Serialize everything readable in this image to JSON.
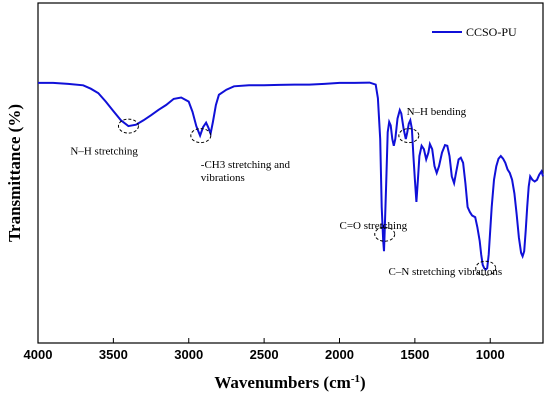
{
  "chart_data": {
    "type": "line",
    "xlabel": "Wavenumbers (cm",
    "xlabel_sup": "-1",
    "xlabel_close": ")",
    "ylabel": "Transmittance (%)",
    "xlim": [
      4000,
      650
    ],
    "x_reversed": true,
    "y_units": "arbitrary (no y tick labels)",
    "ylim": [
      0,
      100
    ],
    "xticks": [
      4000,
      3500,
      3000,
      2500,
      2000,
      1500,
      1000
    ],
    "grid": false,
    "legend_position": "top-right",
    "series": [
      {
        "name": "CCSO-PU",
        "color": "#1010d8",
        "points": [
          [
            4000,
            76.5
          ],
          [
            3900,
            76.5
          ],
          [
            3800,
            76.2
          ],
          [
            3700,
            75.8
          ],
          [
            3650,
            74.8
          ],
          [
            3600,
            73.5
          ],
          [
            3550,
            71
          ],
          [
            3500,
            68.2
          ],
          [
            3450,
            65.5
          ],
          [
            3400,
            63.8
          ],
          [
            3350,
            64.2
          ],
          [
            3300,
            65.5
          ],
          [
            3250,
            67
          ],
          [
            3200,
            68.6
          ],
          [
            3150,
            70
          ],
          [
            3100,
            71.8
          ],
          [
            3050,
            72.2
          ],
          [
            3000,
            71
          ],
          [
            2975,
            68
          ],
          [
            2950,
            63.8
          ],
          [
            2925,
            61
          ],
          [
            2905,
            63.5
          ],
          [
            2885,
            64.8
          ],
          [
            2870,
            63.4
          ],
          [
            2855,
            61.6
          ],
          [
            2840,
            65
          ],
          [
            2820,
            70
          ],
          [
            2800,
            73
          ],
          [
            2750,
            74.5
          ],
          [
            2700,
            75.5
          ],
          [
            2600,
            75.8
          ],
          [
            2500,
            75.8
          ],
          [
            2400,
            75.9
          ],
          [
            2300,
            76
          ],
          [
            2200,
            76
          ],
          [
            2100,
            76.2
          ],
          [
            2000,
            76.5
          ],
          [
            1900,
            76.5
          ],
          [
            1800,
            76.6
          ],
          [
            1760,
            76
          ],
          [
            1745,
            72
          ],
          [
            1730,
            60
          ],
          [
            1720,
            40
          ],
          [
            1710,
            30
          ],
          [
            1705,
            27
          ],
          [
            1700,
            33
          ],
          [
            1690,
            47
          ],
          [
            1680,
            62
          ],
          [
            1670,
            65
          ],
          [
            1660,
            64
          ],
          [
            1650,
            60
          ],
          [
            1640,
            58
          ],
          [
            1630,
            60
          ],
          [
            1615,
            66
          ],
          [
            1600,
            68.5
          ],
          [
            1590,
            67.5
          ],
          [
            1575,
            63
          ],
          [
            1560,
            60
          ],
          [
            1550,
            62
          ],
          [
            1540,
            64.5
          ],
          [
            1530,
            65.5
          ],
          [
            1520,
            63
          ],
          [
            1510,
            55
          ],
          [
            1500,
            48
          ],
          [
            1490,
            41.5
          ],
          [
            1480,
            48
          ],
          [
            1470,
            55
          ],
          [
            1455,
            58
          ],
          [
            1440,
            57
          ],
          [
            1425,
            54
          ],
          [
            1410,
            56
          ],
          [
            1400,
            58.5
          ],
          [
            1385,
            57
          ],
          [
            1370,
            52
          ],
          [
            1355,
            50
          ],
          [
            1340,
            52
          ],
          [
            1320,
            56
          ],
          [
            1300,
            58.2
          ],
          [
            1285,
            58
          ],
          [
            1270,
            55
          ],
          [
            1255,
            49
          ],
          [
            1240,
            47
          ],
          [
            1225,
            50.5
          ],
          [
            1210,
            54
          ],
          [
            1195,
            54.5
          ],
          [
            1180,
            53
          ],
          [
            1165,
            47
          ],
          [
            1150,
            40
          ],
          [
            1135,
            38.5
          ],
          [
            1120,
            37.5
          ],
          [
            1100,
            37
          ],
          [
            1085,
            34
          ],
          [
            1070,
            30
          ],
          [
            1060,
            26
          ],
          [
            1050,
            23
          ],
          [
            1040,
            22
          ],
          [
            1030,
            21.6
          ],
          [
            1020,
            22
          ],
          [
            1010,
            26
          ],
          [
            1000,
            33
          ],
          [
            990,
            40
          ],
          [
            975,
            48
          ],
          [
            960,
            52
          ],
          [
            945,
            54.2
          ],
          [
            930,
            55
          ],
          [
            915,
            54.2
          ],
          [
            900,
            53
          ],
          [
            885,
            51
          ],
          [
            870,
            50
          ],
          [
            855,
            48
          ],
          [
            840,
            44
          ],
          [
            825,
            38
          ],
          [
            810,
            31
          ],
          [
            795,
            26.5
          ],
          [
            785,
            25.5
          ],
          [
            775,
            27
          ],
          [
            765,
            33
          ],
          [
            755,
            40
          ],
          [
            745,
            46
          ],
          [
            735,
            49
          ],
          [
            720,
            48
          ],
          [
            705,
            47.5
          ],
          [
            690,
            48
          ],
          [
            675,
            49.5
          ],
          [
            660,
            50.5
          ],
          [
            650,
            49
          ]
        ]
      }
    ],
    "annotations": [
      {
        "lines": [
          "N–H stretching"
        ],
        "x": 3400,
        "y": 63.8,
        "text_anchor_x": 3785,
        "text_anchor_y": 55.5
      },
      {
        "lines": [
          "-CH3 stretching  and",
          "vibrations"
        ],
        "x": 2920,
        "y": 61,
        "text_anchor_x": 2920,
        "text_anchor_y": 51.5
      },
      {
        "lines": [
          "N–H bending"
        ],
        "x": 1540,
        "y": 61,
        "text_anchor_x": 1555,
        "text_anchor_y": 67
      },
      {
        "lines": [
          "C=O stretching"
        ],
        "x": 1700,
        "y": 32,
        "text_anchor_x": 2000,
        "text_anchor_y": 33.5
      },
      {
        "lines": [
          "C–N stretching  vibrations"
        ],
        "x": 1030,
        "y": 22,
        "text_anchor_x": 1675,
        "text_anchor_y": 20
      }
    ]
  }
}
